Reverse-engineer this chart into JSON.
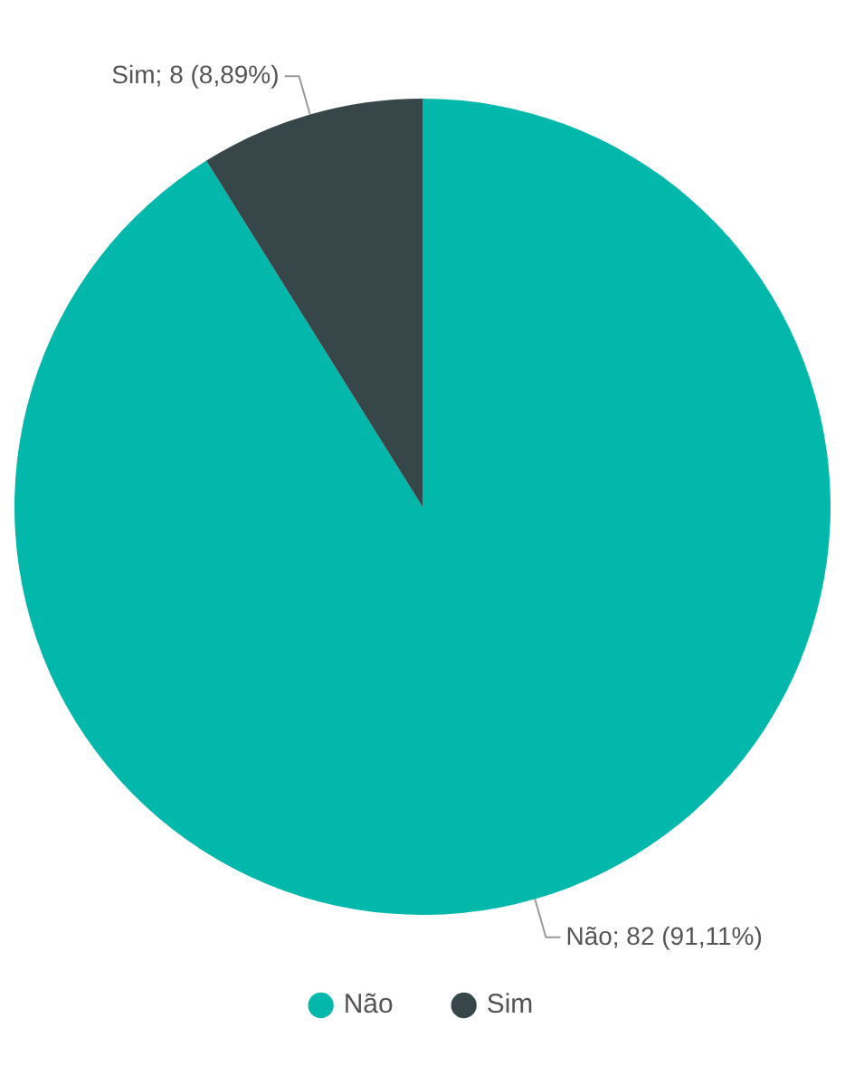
{
  "chart_data": {
    "type": "pie",
    "categories": [
      "Não",
      "Sim"
    ],
    "values": [
      82,
      8
    ],
    "colors": [
      "#01b8aa",
      "#374649"
    ],
    "value_labels": [
      "Não; 82 (91,11%)",
      "Sim; 8 (8,89%)"
    ],
    "legend": "bottom"
  }
}
